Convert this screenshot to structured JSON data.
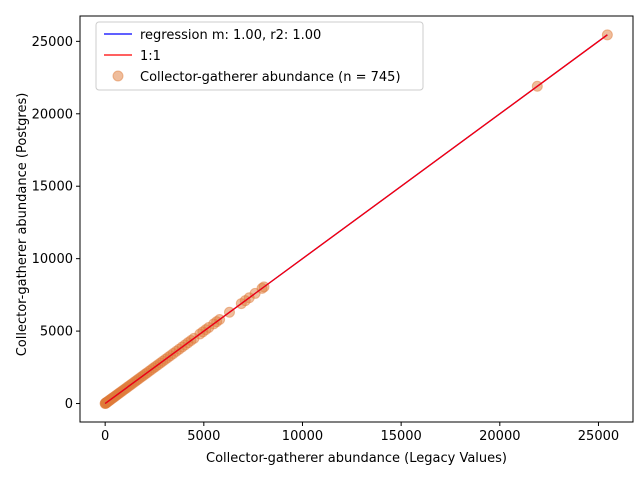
{
  "chart_data": {
    "type": "scatter",
    "title": "",
    "xlabel": "Collector-gatherer abundance (Legacy Values)",
    "ylabel": "Collector-gatherer abundance (Postgres)",
    "xlim": [
      -1275,
      26750
    ],
    "ylim": [
      -1275,
      26750
    ],
    "xticks": [
      0,
      5000,
      10000,
      15000,
      20000,
      25000
    ],
    "yticks": [
      0,
      5000,
      10000,
      15000,
      20000,
      25000
    ],
    "grid": false,
    "legend_position": "top-left",
    "series": [
      {
        "name": "regression m: 1.00, r2: 1.00",
        "kind": "line",
        "color": "#0000ff",
        "x": [
          0,
          25450
        ],
        "y": [
          0,
          25450
        ]
      },
      {
        "name": "1:1",
        "kind": "line",
        "color": "#ff0000",
        "x": [
          0,
          25450
        ],
        "y": [
          0,
          25450
        ]
      },
      {
        "name": "Collector-gatherer abundance (n = 745)",
        "kind": "scatter",
        "color": "#e07b39",
        "points": [
          [
            0,
            0
          ],
          [
            10,
            10
          ],
          [
            25,
            25
          ],
          [
            40,
            40
          ],
          [
            60,
            60
          ],
          [
            80,
            80
          ],
          [
            100,
            100
          ],
          [
            130,
            130
          ],
          [
            160,
            160
          ],
          [
            200,
            200
          ],
          [
            240,
            240
          ],
          [
            280,
            280
          ],
          [
            320,
            320
          ],
          [
            370,
            370
          ],
          [
            420,
            420
          ],
          [
            470,
            470
          ],
          [
            520,
            520
          ],
          [
            580,
            580
          ],
          [
            640,
            640
          ],
          [
            700,
            700
          ],
          [
            760,
            760
          ],
          [
            830,
            830
          ],
          [
            900,
            900
          ],
          [
            970,
            970
          ],
          [
            1040,
            1040
          ],
          [
            1120,
            1120
          ],
          [
            1200,
            1200
          ],
          [
            1280,
            1280
          ],
          [
            1360,
            1360
          ],
          [
            1450,
            1450
          ],
          [
            1540,
            1540
          ],
          [
            1630,
            1630
          ],
          [
            1720,
            1720
          ],
          [
            1820,
            1820
          ],
          [
            1920,
            1920
          ],
          [
            2020,
            2020
          ],
          [
            2120,
            2120
          ],
          [
            2230,
            2230
          ],
          [
            2340,
            2340
          ],
          [
            2450,
            2450
          ],
          [
            2560,
            2560
          ],
          [
            2680,
            2680
          ],
          [
            2800,
            2800
          ],
          [
            2920,
            2920
          ],
          [
            3050,
            3050
          ],
          [
            3180,
            3180
          ],
          [
            3310,
            3310
          ],
          [
            3450,
            3450
          ],
          [
            3600,
            3600
          ],
          [
            3750,
            3750
          ],
          [
            3900,
            3900
          ],
          [
            4050,
            4050
          ],
          [
            4200,
            4200
          ],
          [
            4350,
            4350
          ],
          [
            4500,
            4500
          ],
          [
            4800,
            4800
          ],
          [
            4950,
            4950
          ],
          [
            5100,
            5100
          ],
          [
            5250,
            5250
          ],
          [
            5500,
            5500
          ],
          [
            5650,
            5650
          ],
          [
            5800,
            5800
          ],
          [
            6300,
            6300
          ],
          [
            6900,
            6900
          ],
          [
            7100,
            7100
          ],
          [
            7300,
            7300
          ],
          [
            7600,
            7600
          ],
          [
            7950,
            7950
          ],
          [
            8050,
            8050
          ],
          [
            21900,
            21900
          ],
          [
            25450,
            25450
          ]
        ]
      }
    ]
  }
}
